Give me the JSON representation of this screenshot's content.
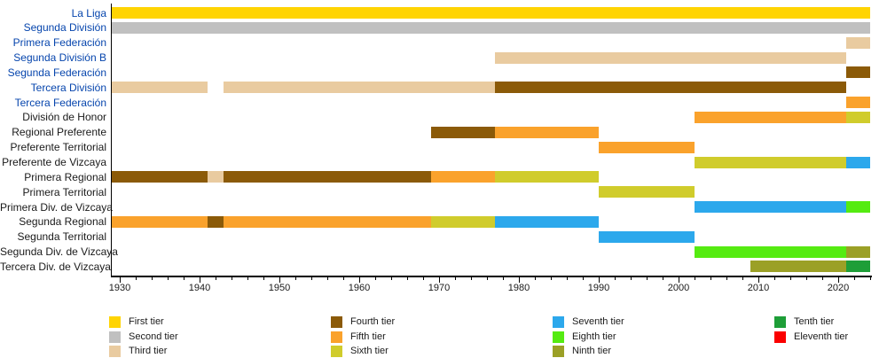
{
  "chart_data": {
    "type": "bar",
    "subtype": "horizontal-timeline-gantt",
    "description": "League tier history timeline (Spanish football league system, Vizcaya divisions)",
    "x_axis": {
      "min_year": 1929,
      "max_year": 2024,
      "tick_years": [
        1930,
        1940,
        1950,
        1960,
        1970,
        1980,
        1990,
        2000,
        2010,
        2020
      ],
      "tick_labels": [
        "1930",
        "1940",
        "1950",
        "1960",
        "1970",
        "1980",
        "1990",
        "2000",
        "2010",
        "2020"
      ],
      "minor_tick_step": 2,
      "minor_tick_start": 1930,
      "minor_tick_end": 2024
    },
    "rows": [
      {
        "label": "La Liga",
        "is_link": true,
        "segments": [
          {
            "from": 1929,
            "to": 2024,
            "tier": 1
          }
        ]
      },
      {
        "label": "Segunda División",
        "is_link": true,
        "segments": [
          {
            "from": 1929,
            "to": 2024,
            "tier": 2
          }
        ]
      },
      {
        "label": "Primera Federación",
        "is_link": true,
        "segments": [
          {
            "from": 2021,
            "to": 2024,
            "tier": 3
          }
        ]
      },
      {
        "label": "Segunda División B",
        "is_link": true,
        "segments": [
          {
            "from": 1977,
            "to": 2021,
            "tier": 3
          }
        ]
      },
      {
        "label": "Segunda Federación",
        "is_link": true,
        "segments": [
          {
            "from": 2021,
            "to": 2024,
            "tier": 4
          }
        ]
      },
      {
        "label": "Tercera División",
        "is_link": true,
        "segments": [
          {
            "from": 1929,
            "to": 1941,
            "tier": 3
          },
          {
            "from": 1943,
            "to": 1977,
            "tier": 3
          },
          {
            "from": 1977,
            "to": 2021,
            "tier": 4
          }
        ]
      },
      {
        "label": "Tercera Federación",
        "is_link": true,
        "segments": [
          {
            "from": 2021,
            "to": 2024,
            "tier": 5
          }
        ]
      },
      {
        "label": "División de Honor",
        "is_link": false,
        "segments": [
          {
            "from": 2002,
            "to": 2021,
            "tier": 5
          },
          {
            "from": 2021,
            "to": 2024,
            "tier": 6
          }
        ]
      },
      {
        "label": "Regional Preferente",
        "is_link": false,
        "segments": [
          {
            "from": 1969,
            "to": 1977,
            "tier": 4
          },
          {
            "from": 1977,
            "to": 1990,
            "tier": 5
          }
        ]
      },
      {
        "label": "Preferente Territorial",
        "is_link": false,
        "segments": [
          {
            "from": 1990,
            "to": 2002,
            "tier": 5
          }
        ]
      },
      {
        "label": "Preferente de Vizcaya",
        "is_link": false,
        "segments": [
          {
            "from": 2002,
            "to": 2021,
            "tier": 6
          },
          {
            "from": 2021,
            "to": 2024,
            "tier": 7
          }
        ]
      },
      {
        "label": "Primera Regional",
        "is_link": false,
        "segments": [
          {
            "from": 1929,
            "to": 1941,
            "tier": 4
          },
          {
            "from": 1941,
            "to": 1943,
            "tier": 3
          },
          {
            "from": 1943,
            "to": 1969,
            "tier": 4
          },
          {
            "from": 1969,
            "to": 1977,
            "tier": 5
          },
          {
            "from": 1977,
            "to": 1990,
            "tier": 6
          }
        ]
      },
      {
        "label": "Primera Territorial",
        "is_link": false,
        "segments": [
          {
            "from": 1990,
            "to": 2002,
            "tier": 6
          }
        ]
      },
      {
        "label": "Primera Div. de Vizcaya",
        "is_link": false,
        "segments": [
          {
            "from": 2002,
            "to": 2021,
            "tier": 7
          },
          {
            "from": 2021,
            "to": 2024,
            "tier": 8
          }
        ]
      },
      {
        "label": "Segunda Regional",
        "is_link": false,
        "segments": [
          {
            "from": 1929,
            "to": 1941,
            "tier": 5
          },
          {
            "from": 1941,
            "to": 1943,
            "tier": 4
          },
          {
            "from": 1943,
            "to": 1969,
            "tier": 5
          },
          {
            "from": 1969,
            "to": 1977,
            "tier": 6
          },
          {
            "from": 1977,
            "to": 1990,
            "tier": 7
          }
        ]
      },
      {
        "label": "Segunda Territorial",
        "is_link": false,
        "segments": [
          {
            "from": 1990,
            "to": 2002,
            "tier": 7
          }
        ]
      },
      {
        "label": "Segunda Div. de Vizcaya",
        "is_link": false,
        "segments": [
          {
            "from": 2002,
            "to": 2021,
            "tier": 8
          },
          {
            "from": 2021,
            "to": 2024,
            "tier": 9
          }
        ]
      },
      {
        "label": "Tercera Div. de Vizcaya",
        "is_link": false,
        "segments": [
          {
            "from": 2009,
            "to": 2021,
            "tier": 9
          },
          {
            "from": 2021,
            "to": 2024,
            "tier": 10
          }
        ]
      }
    ],
    "tiers": [
      {
        "tier": 1,
        "label": "First tier",
        "color": "#FFD403"
      },
      {
        "tier": 2,
        "label": "Second tier",
        "color": "#C0C0C0"
      },
      {
        "tier": 3,
        "label": "Third tier",
        "color": "#E9CBA0"
      },
      {
        "tier": 4,
        "label": "Fourth tier",
        "color": "#8B5A08"
      },
      {
        "tier": 5,
        "label": "Fifth tier",
        "color": "#FAA22C"
      },
      {
        "tier": 6,
        "label": "Sixth tier",
        "color": "#D0CC2C"
      },
      {
        "tier": 7,
        "label": "Seventh tier",
        "color": "#2CA8EC"
      },
      {
        "tier": 8,
        "label": "Eighth tier",
        "color": "#55EB11"
      },
      {
        "tier": 9,
        "label": "Ninth tier",
        "color": "#9BA026"
      },
      {
        "tier": 10,
        "label": "Tenth tier",
        "color": "#1E9E38"
      },
      {
        "tier": 11,
        "label": "Eleventh tier",
        "color": "#FB0000"
      }
    ],
    "legend": {
      "position": "bottom",
      "columns": 4,
      "items_per_column": 3
    },
    "colors": {
      "link_blue": "#0645ad",
      "label_black": "#1a1a1a",
      "axis_black": "#000000",
      "background": "#ffffff"
    }
  }
}
